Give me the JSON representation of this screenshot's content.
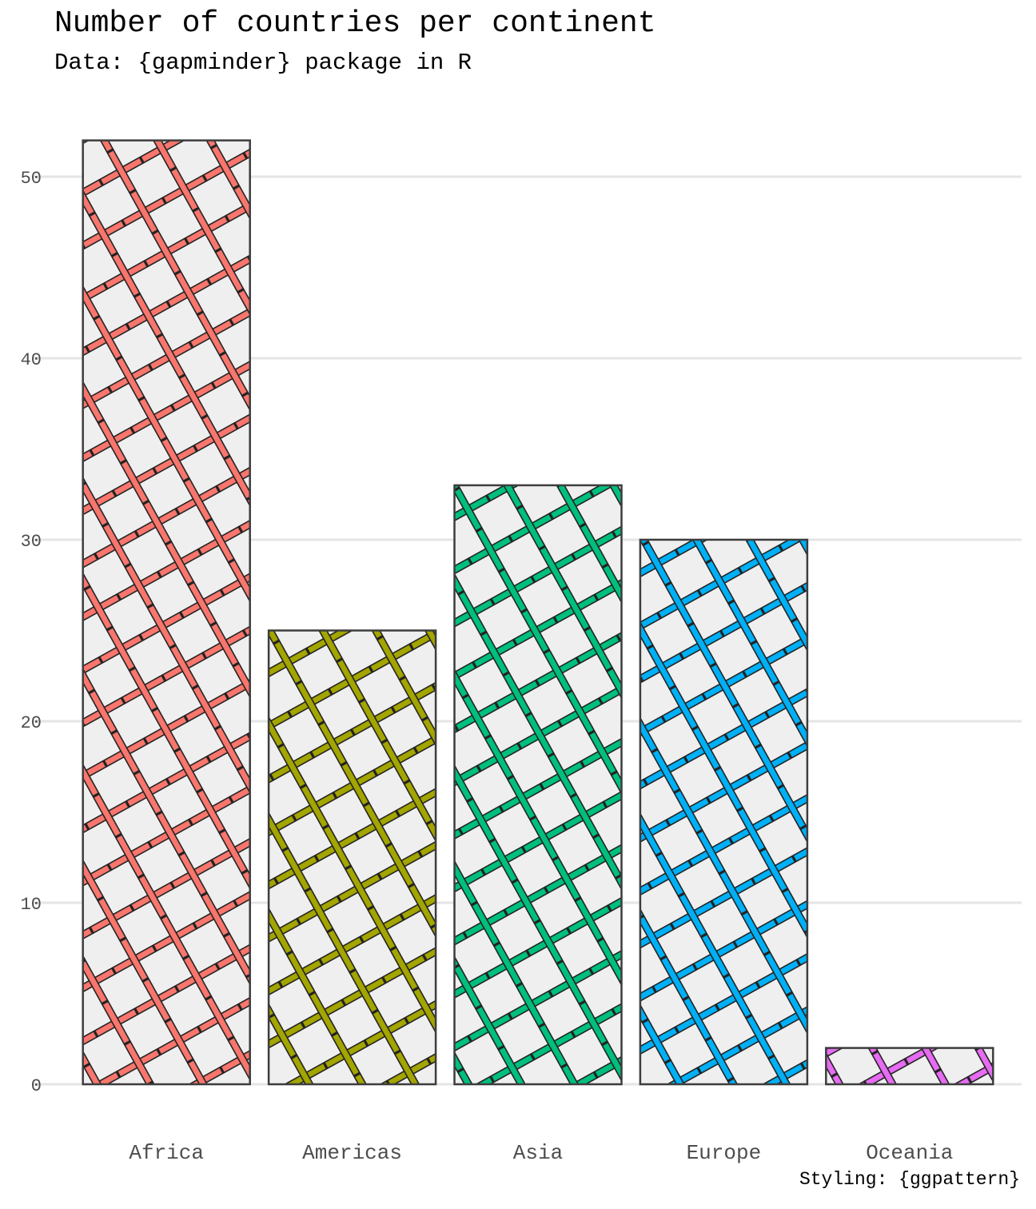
{
  "chart_data": {
    "type": "bar",
    "title": "Number of countries per continent",
    "subtitle": "Data: {gapminder} package in R",
    "caption": "Styling: {ggpattern}",
    "xlabel": "",
    "ylabel": "",
    "categories": [
      "Africa",
      "Americas",
      "Asia",
      "Europe",
      "Oceania"
    ],
    "values": [
      52,
      25,
      33,
      30,
      2
    ],
    "colors": [
      "#F8766D",
      "#A3A500",
      "#00BF7D",
      "#00B0F6",
      "#E76BF3"
    ],
    "pattern": "crosshatch",
    "bar_fill": "#efefef",
    "bar_outline": "#3d3d3d",
    "ylim": [
      0,
      52
    ],
    "yticks": [
      0,
      10,
      20,
      30,
      40,
      50
    ],
    "grid": "horizontal major",
    "legend": "none"
  }
}
